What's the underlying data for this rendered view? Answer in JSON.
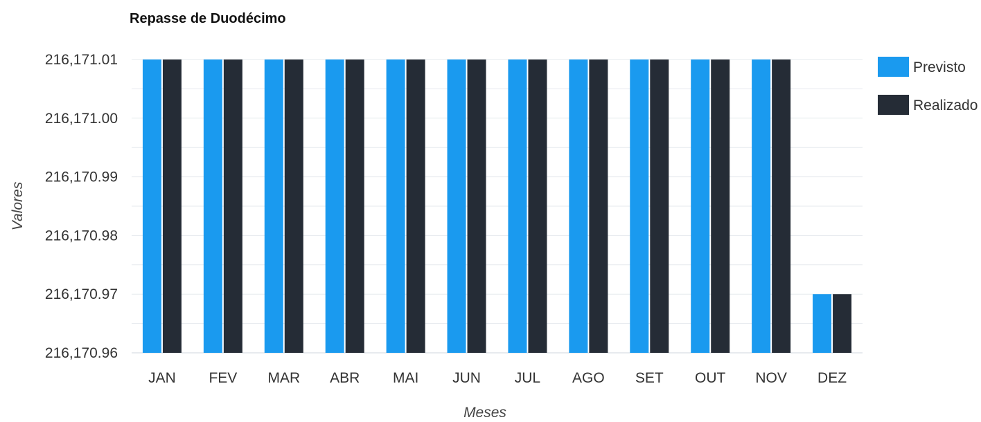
{
  "chart_data": {
    "type": "bar",
    "title": "Repasse de Duodécimo",
    "xlabel": "Meses",
    "ylabel": "Valores",
    "categories": [
      "JAN",
      "FEV",
      "MAR",
      "ABR",
      "MAI",
      "JUN",
      "JUL",
      "AGO",
      "SET",
      "OUT",
      "NOV",
      "DEZ"
    ],
    "series": [
      {
        "name": "Previsto",
        "color": "#1a9aef",
        "values": [
          216171.01,
          216171.01,
          216171.01,
          216171.01,
          216171.01,
          216171.01,
          216171.01,
          216171.01,
          216171.01,
          216171.01,
          216171.01,
          216170.97
        ]
      },
      {
        "name": "Realizado",
        "color": "#252c36",
        "values": [
          216171.01,
          216171.01,
          216171.01,
          216171.01,
          216171.01,
          216171.01,
          216171.01,
          216171.01,
          216171.01,
          216171.01,
          216171.01,
          216170.97
        ]
      }
    ],
    "ylim": [
      216170.96,
      216171.01
    ],
    "yticks": [
      216170.96,
      216170.97,
      216170.98,
      216170.99,
      216171.0,
      216171.01
    ],
    "ytick_labels": [
      "216,170.96",
      "216,170.97",
      "216,170.98",
      "216,170.99",
      "216,171.00",
      "216,171.01"
    ],
    "grid": true,
    "legend_position": "right"
  }
}
